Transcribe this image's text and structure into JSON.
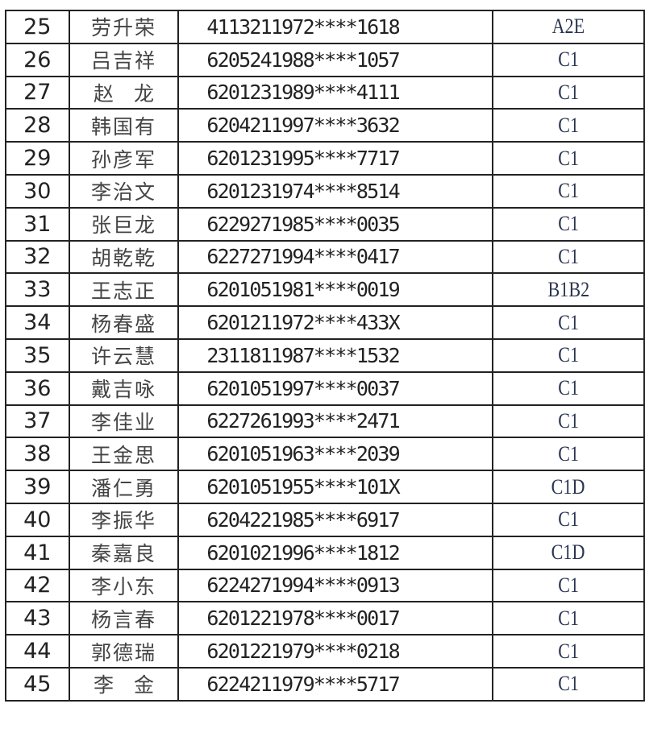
{
  "table": {
    "rows": [
      {
        "no": "25",
        "name": "劳升荣",
        "id": "4113211972****1618",
        "class": "A2E"
      },
      {
        "no": "26",
        "name": "吕吉祥",
        "id": "6205241988****1057",
        "class": "C1"
      },
      {
        "no": "27",
        "name": "赵　龙",
        "id": "6201231989****4111",
        "class": "C1"
      },
      {
        "no": "28",
        "name": "韩国有",
        "id": "6204211997****3632",
        "class": "C1"
      },
      {
        "no": "29",
        "name": "孙彦军",
        "id": "6201231995****7717",
        "class": "C1"
      },
      {
        "no": "30",
        "name": "李治文",
        "id": "6201231974****8514",
        "class": "C1"
      },
      {
        "no": "31",
        "name": "张巨龙",
        "id": "6229271985****0035",
        "class": "C1"
      },
      {
        "no": "32",
        "name": "胡乾乾",
        "id": "6227271994****0417",
        "class": "C1"
      },
      {
        "no": "33",
        "name": "王志正",
        "id": "6201051981****0019",
        "class": "B1B2"
      },
      {
        "no": "34",
        "name": "杨春盛",
        "id": "6201211972****433X",
        "class": "C1"
      },
      {
        "no": "35",
        "name": "许云慧",
        "id": "2311811987****1532",
        "class": "C1"
      },
      {
        "no": "36",
        "name": "戴吉咏",
        "id": "6201051997****0037",
        "class": "C1"
      },
      {
        "no": "37",
        "name": "李佳业",
        "id": "6227261993****2471",
        "class": "C1"
      },
      {
        "no": "38",
        "name": "王金思",
        "id": "6201051963****2039",
        "class": "C1"
      },
      {
        "no": "39",
        "name": "潘仁勇",
        "id": "6201051955****101X",
        "class": "C1D"
      },
      {
        "no": "40",
        "name": "李振华",
        "id": "6204221985****6917",
        "class": "C1"
      },
      {
        "no": "41",
        "name": "秦嘉良",
        "id": "6201021996****1812",
        "class": "C1D"
      },
      {
        "no": "42",
        "name": "李小东",
        "id": "6224271994****0913",
        "class": "C1"
      },
      {
        "no": "43",
        "name": "杨言春",
        "id": "6201221978****0017",
        "class": "C1"
      },
      {
        "no": "44",
        "name": "郭德瑞",
        "id": "6201221979****0218",
        "class": "C1"
      },
      {
        "no": "45",
        "name": "李　金",
        "id": "6224211979****5717",
        "class": "C1"
      }
    ]
  }
}
